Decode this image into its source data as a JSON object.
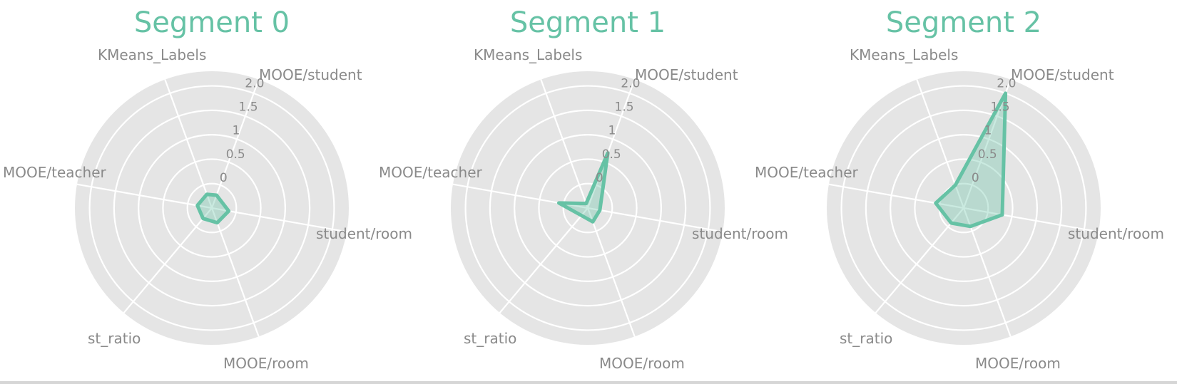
{
  "colors": {
    "series": "#66c2a5",
    "series_fill": "rgba(102,194,165,0.35)",
    "panel_bg": "#e5e5e5",
    "grid": "#ffffff",
    "label": "#8a8a8a"
  },
  "chart_data": [
    {
      "type": "radar",
      "title": "Segment 0",
      "axes": [
        "MOOE/student",
        "student/room",
        "MOOE/room",
        "st_ratio",
        "MOOE/teacher",
        "KMeans_Labels"
      ],
      "rticks": [
        "0",
        "0.5",
        "1",
        "1.5",
        "2.0"
      ],
      "rtick_values": [
        0,
        0.5,
        1,
        1.5,
        2.0
      ],
      "rlim": [
        -0.5,
        2.3
      ],
      "values": [
        -0.22,
        -0.15,
        -0.18,
        -0.22,
        -0.2,
        -0.2
      ]
    },
    {
      "type": "radar",
      "title": "Segment 1",
      "axes": [
        "MOOE/student",
        "student/room",
        "MOOE/room",
        "st_ratio",
        "MOOE/teacher",
        "KMeans_Labels"
      ],
      "rticks": [
        "0",
        "0.5",
        "1",
        "1.5",
        "2.0"
      ],
      "rtick_values": [
        0,
        0.5,
        1,
        1.5,
        2.0
      ],
      "rlim": [
        -0.5,
        2.3
      ],
      "values": [
        0.7,
        -0.25,
        -0.2,
        -0.3,
        0.1,
        -0.4
      ]
    },
    {
      "type": "radar",
      "title": "Segment 2",
      "axes": [
        "MOOE/student",
        "student/room",
        "MOOE/room",
        "st_ratio",
        "MOOE/teacher",
        "KMeans_Labels"
      ],
      "rticks": [
        "0",
        "0.5",
        "1",
        "1.5",
        "2.0"
      ],
      "rtick_values": [
        0,
        0.5,
        1,
        1.5,
        2.0
      ],
      "rlim": [
        -0.5,
        2.3
      ],
      "values": [
        2.0,
        0.3,
        -0.1,
        -0.1,
        0.08,
        0.0
      ]
    }
  ]
}
